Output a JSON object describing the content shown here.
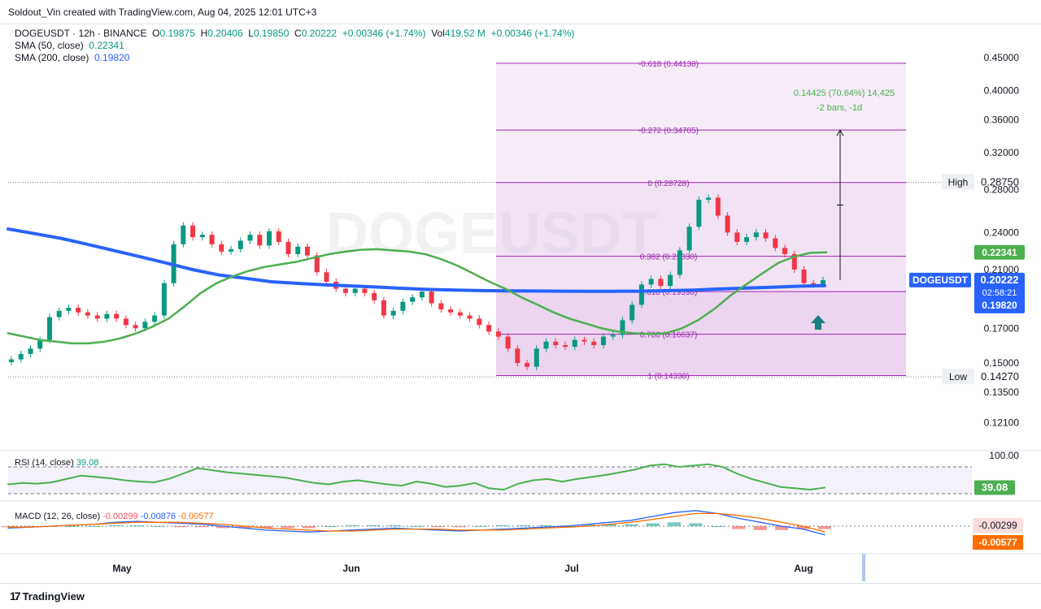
{
  "header": {
    "text": "Soldout_Vin created with TradingView.com, Aug 04, 2025 12:01 UTC+3"
  },
  "legend": {
    "symbol": "DOGEUSDT · 12h · BINANCE",
    "o_label": "O",
    "o": "0.19875",
    "h_label": "H",
    "h": "0.20406",
    "l_label": "L",
    "l": "0.19850",
    "c_label": "C",
    "c": "0.20222",
    "chg": "+0.00346 (+1.74%)",
    "vol_label": "Vol",
    "vol": "419.52 M",
    "vol_chg": "+0.00346 (+1.74%)",
    "sma50_label": "SMA (50, close)",
    "sma50": "0.22341",
    "sma200_label": "SMA (200, close)",
    "sma200": "0.19820"
  },
  "rsi": {
    "label": "RSI (14, close)",
    "value": "39.08",
    "top": "100.00"
  },
  "macd": {
    "label": "MACD (12, 26, close)",
    "v1": "-0.00299",
    "v2": "-0.00876",
    "v3": "-0.00577",
    "axis1": "-0.00299",
    "axis2": "-0.00577"
  },
  "watermark": "DOGEUSDT",
  "branding": {
    "logo_mark": "17",
    "logo_text": "TradingView"
  },
  "colors": {
    "up": "#089981",
    "down": "#f23645",
    "sma50": "#4caf50",
    "sma200": "#2962ff",
    "fib": "#9c27b0",
    "fib_fill": "#f3e5f5",
    "fib_fill_strong": "#e1bee7",
    "rsi": "#4caf50",
    "macd": "#2962ff",
    "signal": "#ff6d00"
  },
  "chart_data": {
    "type": "candlestick",
    "y_scale": "log",
    "price_axis_ticks": [
      "0.45000",
      "0.40000",
      "0.36000",
      "0.32000",
      "0.28000",
      "0.24000",
      "0.21000",
      "0.17000",
      "0.15000",
      "0.13500",
      "0.12100"
    ],
    "price_tick_values": [
      0.45,
      0.4,
      0.36,
      0.32,
      0.28,
      0.24,
      0.21,
      0.17,
      0.15,
      0.135,
      0.121
    ],
    "x_axis_labels": [
      "May",
      "Jun",
      "Jul",
      "Aug"
    ],
    "price_labels": [
      {
        "text": "0.22341",
        "value": 0.22341,
        "kind": "sma50"
      },
      {
        "text": "DOGEUSDT",
        "value": 0.20222,
        "kind": "price-name"
      },
      {
        "text": "0.20222",
        "value": 0.20222,
        "kind": "price"
      },
      {
        "text": "02:58:21",
        "value": 0.20222,
        "kind": "countdown"
      },
      {
        "text": "0.19820",
        "value": 0.1982,
        "kind": "sma200"
      }
    ],
    "high_marker": {
      "label": "High",
      "value": "0.28750"
    },
    "low_marker": {
      "label": "Low",
      "value": "0.14270"
    },
    "fib_levels": [
      {
        "ratio": "-0.618",
        "price": 0.44138,
        "label": "-0.618 (0.44138)"
      },
      {
        "ratio": "-0.272",
        "price": 0.34705,
        "label": "-0.272 (0.34705)"
      },
      {
        "ratio": "0",
        "price": 0.28728,
        "label": "0 (0.28728)"
      },
      {
        "ratio": "0.382",
        "price": 0.2203,
        "label": "0.382 (0.22030)"
      },
      {
        "ratio": "0.618",
        "price": 0.19398,
        "label": "0.618 (0.19398)"
      },
      {
        "ratio": "0.786",
        "price": 0.16637,
        "label": "0.786 (0.16637)"
      },
      {
        "ratio": "1",
        "price": 0.14338,
        "label": "1 (0.14338)"
      }
    ],
    "measure": {
      "line1": "0.14425 (70.64%) 14,425",
      "line2": "-2 bars, -1d",
      "from": 0.20222,
      "to": 0.34705
    },
    "close_series": [
      0.152,
      0.155,
      0.158,
      0.163,
      0.177,
      0.181,
      0.183,
      0.18,
      0.178,
      0.176,
      0.179,
      0.176,
      0.172,
      0.17,
      0.174,
      0.178,
      0.2,
      0.23,
      0.246,
      0.236,
      0.238,
      0.23,
      0.224,
      0.226,
      0.233,
      0.238,
      0.229,
      0.241,
      0.232,
      0.222,
      0.228,
      0.221,
      0.208,
      0.201,
      0.196,
      0.193,
      0.196,
      0.193,
      0.188,
      0.178,
      0.181,
      0.187,
      0.19,
      0.194,
      0.186,
      0.182,
      0.18,
      0.178,
      0.176,
      0.172,
      0.168,
      0.165,
      0.158,
      0.15,
      0.148,
      0.158,
      0.162,
      0.16,
      0.159,
      0.163,
      0.162,
      0.16,
      0.165,
      0.166,
      0.175,
      0.185,
      0.199,
      0.203,
      0.198,
      0.206,
      0.225,
      0.245,
      0.27,
      0.272,
      0.255,
      0.24,
      0.232,
      0.236,
      0.24,
      0.235,
      0.227,
      0.222,
      0.21,
      0.2,
      0.199,
      0.2022
    ],
    "sma50_series": [
      0.167,
      0.165,
      0.163,
      0.162,
      0.161,
      0.161,
      0.162,
      0.164,
      0.167,
      0.171,
      0.176,
      0.184,
      0.193,
      0.2,
      0.205,
      0.209,
      0.212,
      0.214,
      0.216,
      0.219,
      0.222,
      0.224,
      0.2255,
      0.226,
      0.225,
      0.224,
      0.222,
      0.218,
      0.213,
      0.207,
      0.201,
      0.196,
      0.19,
      0.185,
      0.18,
      0.176,
      0.173,
      0.17,
      0.168,
      0.167,
      0.1665,
      0.167,
      0.17,
      0.175,
      0.182,
      0.191,
      0.199,
      0.207,
      0.215,
      0.22,
      0.223,
      0.2234
    ],
    "sma200_series": [
      0.243,
      0.239,
      0.235,
      0.23,
      0.225,
      0.22,
      0.215,
      0.21,
      0.206,
      0.2035,
      0.201,
      0.1998,
      0.1988,
      0.198,
      0.1972,
      0.1963,
      0.1955,
      0.195,
      0.1947,
      0.1945,
      0.1944,
      0.1943,
      0.1942,
      0.1942,
      0.1943,
      0.1946,
      0.1951,
      0.1958,
      0.1965,
      0.1971,
      0.1978,
      0.1982
    ],
    "rsi_series": [
      44,
      46,
      45,
      47,
      52,
      57,
      55,
      53,
      50,
      48,
      47,
      52,
      60,
      68,
      65,
      62,
      60,
      58,
      56,
      54,
      50,
      46,
      44,
      48,
      50,
      47,
      44,
      42,
      48,
      45,
      40,
      42,
      46,
      38,
      36,
      45,
      50,
      52,
      48,
      52,
      55,
      58,
      62,
      66,
      72,
      74,
      70,
      72,
      74,
      70,
      60,
      52,
      46,
      40,
      38,
      36,
      39.08
    ],
    "macd_series": [
      -0.002,
      -0.001,
      0.0,
      0.001,
      0.002,
      0.004,
      0.005,
      0.004,
      0.003,
      0.002,
      0.0,
      -0.002,
      -0.004,
      -0.005,
      -0.006,
      -0.005,
      -0.004,
      -0.003,
      -0.002,
      -0.003,
      -0.004,
      -0.005,
      -0.004,
      -0.003,
      -0.002,
      -0.001,
      0.0,
      0.002,
      0.004,
      0.006,
      0.01,
      0.014,
      0.016,
      0.013,
      0.008,
      0.004,
      0.0,
      -0.003,
      -0.0088
    ],
    "signal_series": [
      -0.001,
      -0.001,
      0.0,
      0.001,
      0.002,
      0.003,
      0.004,
      0.004,
      0.004,
      0.003,
      0.002,
      0.0,
      -0.002,
      -0.003,
      -0.004,
      -0.005,
      -0.005,
      -0.004,
      -0.003,
      -0.003,
      -0.003,
      -0.004,
      -0.004,
      -0.004,
      -0.003,
      -0.002,
      -0.001,
      0.0,
      0.002,
      0.004,
      0.007,
      0.01,
      0.013,
      0.013,
      0.011,
      0.008,
      0.004,
      0.0,
      -0.0058
    ]
  }
}
